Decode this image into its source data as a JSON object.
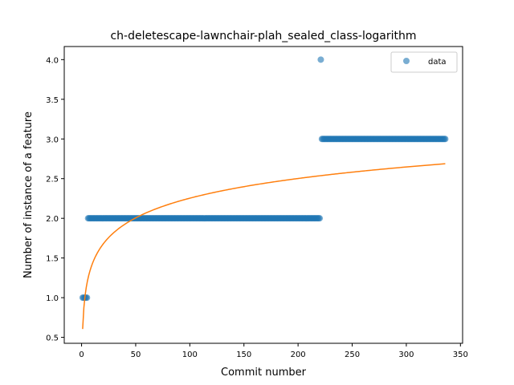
{
  "chart_data": {
    "type": "scatter",
    "title": "ch-deletescape-lawnchair-plah_sealed_class-logarithm",
    "xlabel": "Commit number",
    "ylabel": "Number of instance of a feature",
    "xlim": [
      -16,
      352
    ],
    "ylim": [
      0.425,
      4.165
    ],
    "x_ticks": [
      0,
      50,
      100,
      150,
      200,
      250,
      300,
      350
    ],
    "y_ticks": [
      0.5,
      1.0,
      1.5,
      2.0,
      2.5,
      3.0,
      3.5,
      4.0
    ],
    "grid": false,
    "legend_position": "top-right",
    "series": [
      {
        "name": "data",
        "kind": "scatter",
        "color": "#1f77b4",
        "segments": [
          {
            "x_start": 1,
            "x_end": 5,
            "y": 1.0
          },
          {
            "x_start": 6,
            "x_end": 220,
            "y": 2.0
          },
          {
            "x_start": 221,
            "x_end": 221,
            "y": 4.0
          },
          {
            "x_start": 222,
            "x_end": 336,
            "y": 3.0
          }
        ]
      },
      {
        "kind": "line",
        "color": "#ff7f0e",
        "fit": {
          "form": "a + b*ln(x)",
          "a": 0.605,
          "b": 0.358,
          "x_min": 1,
          "x_max": 336
        }
      }
    ]
  }
}
